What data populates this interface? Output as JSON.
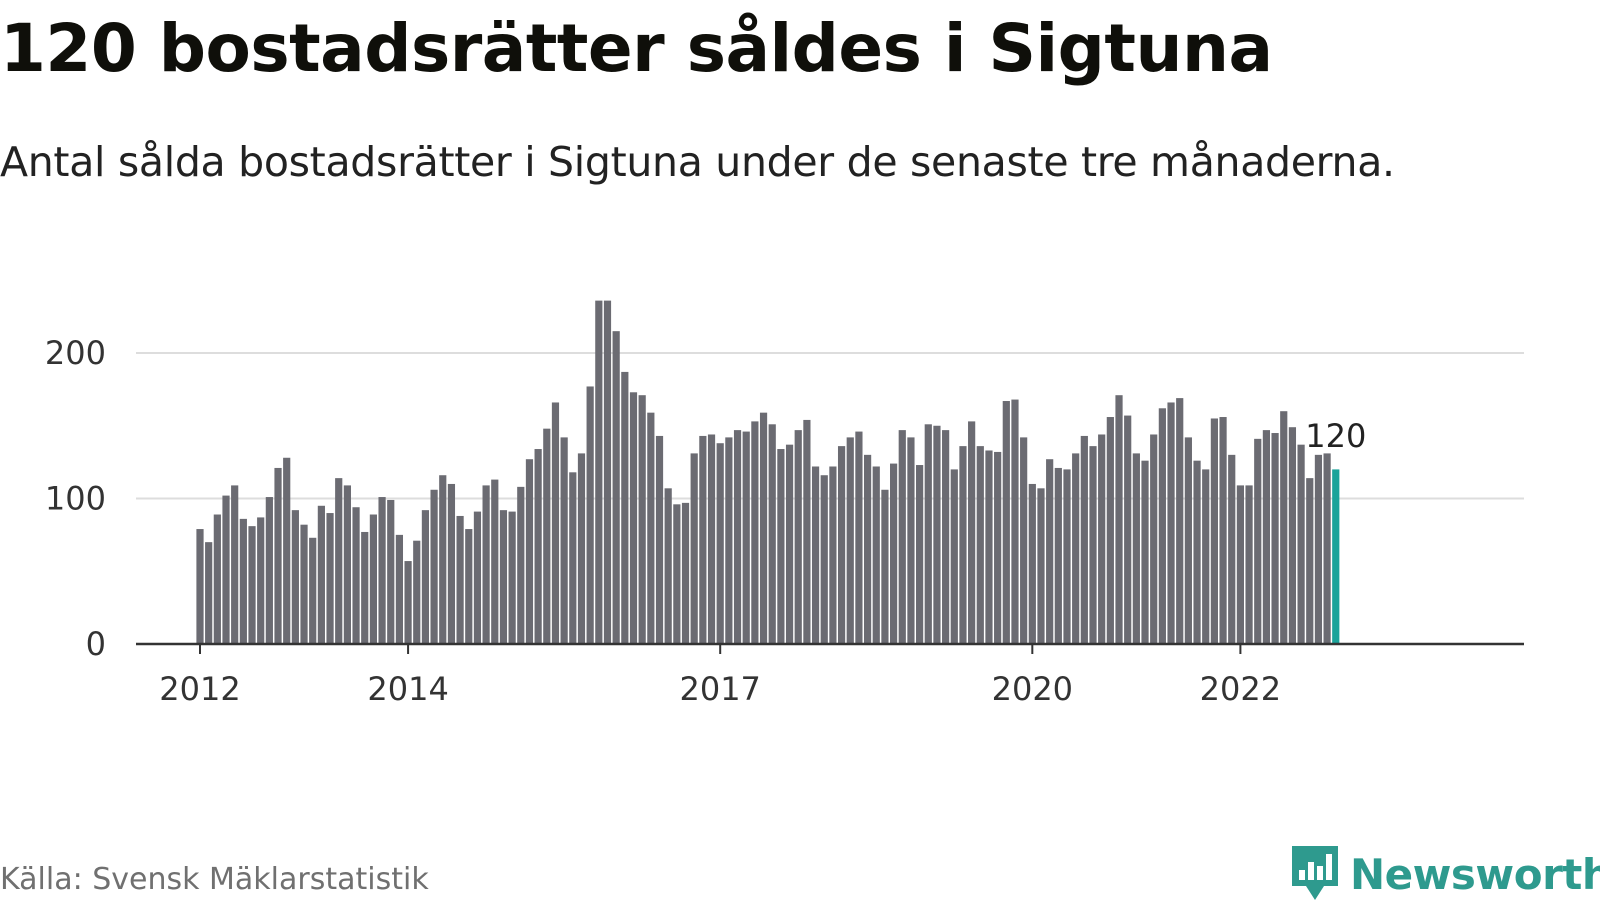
{
  "header": {
    "title": "120 bostadsrätter såldes i Sigtuna",
    "subtitle": "Antal sålda bostadsrätter i Sigtuna under de senaste tre månaderna."
  },
  "footer": {
    "source": "Källa: Svensk Mäklarstatistik",
    "brand": "Newsworthy"
  },
  "colors": {
    "bar": "#6b6b72",
    "highlight": "#1aa39a",
    "grid": "#dddddd",
    "axis": "#333333",
    "brand": "#2e9a8e"
  },
  "chart_data": {
    "type": "bar",
    "title": "120 bostadsrätter såldes i Sigtuna",
    "subtitle": "Antal sålda bostadsrätter i Sigtuna under de senaste tre månaderna.",
    "xlabel": "",
    "ylabel": "",
    "ylim": [
      0,
      240
    ],
    "y_ticks": [
      0,
      100,
      200
    ],
    "x_ticks": [
      2012,
      2014,
      2017,
      2020,
      2022
    ],
    "grid": true,
    "start": "2012-01",
    "interval": "month",
    "values": [
      79,
      70,
      89,
      102,
      109,
      86,
      81,
      87,
      101,
      121,
      128,
      92,
      82,
      73,
      95,
      90,
      114,
      109,
      94,
      77,
      89,
      101,
      99,
      75,
      57,
      71,
      92,
      106,
      116,
      110,
      88,
      79,
      91,
      109,
      113,
      92,
      91,
      108,
      127,
      134,
      148,
      166,
      142,
      118,
      131,
      177,
      236,
      236,
      215,
      187,
      173,
      171,
      159,
      143,
      107,
      96,
      97,
      131,
      143,
      144,
      138,
      142,
      147,
      146,
      153,
      159,
      151,
      134,
      137,
      147,
      154,
      122,
      116,
      122,
      136,
      142,
      146,
      130,
      122,
      106,
      124,
      147,
      142,
      123,
      151,
      150,
      147,
      120,
      136,
      153,
      136,
      133,
      132,
      167,
      168,
      142,
      110,
      107,
      127,
      121,
      120,
      131,
      143,
      136,
      144,
      156,
      171,
      157,
      131,
      126,
      144,
      162,
      166,
      169,
      142,
      126,
      120,
      155,
      156,
      130,
      109,
      109,
      141,
      147,
      145,
      160,
      149,
      137,
      114,
      130,
      131,
      120
    ],
    "highlight_index": 131,
    "highlight_label": "120"
  }
}
